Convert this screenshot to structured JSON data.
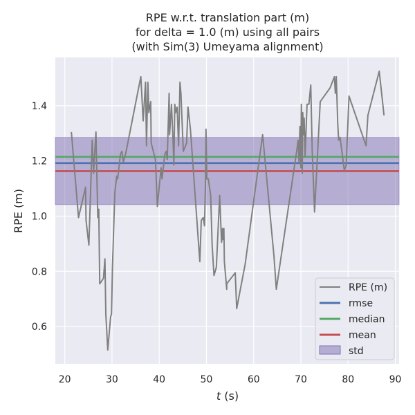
{
  "chart_data": {
    "type": "line",
    "title_lines": [
      "RPE w.r.t. translation part (m)",
      "for delta = 1.0 (m) using all pairs",
      "(with Sim(3) Umeyama alignment)"
    ],
    "xlabel_var": "t",
    "xlabel_unit": "(s)",
    "ylabel": "RPE (m)",
    "xlim": [
      18.0,
      90.8
    ],
    "ylim": [
      0.465,
      1.575
    ],
    "x_ticks": [
      20,
      30,
      40,
      50,
      60,
      70,
      80,
      90
    ],
    "y_ticks": [
      0.6,
      0.8,
      1.0,
      1.2,
      1.4
    ],
    "y_tick_labels": [
      "0.6",
      "0.8",
      "1.0",
      "1.2",
      "1.4"
    ],
    "grid": true,
    "legend_position": "lower-right",
    "colors": {
      "background": "#eaeaf2",
      "grid": "#ffffff",
      "rpe": "#808080",
      "rmse": "#4c72b0",
      "median": "#55a868",
      "mean": "#c44e52",
      "std": "#8172b2"
    },
    "series": [
      {
        "name": "RPE (m)",
        "points": [
          [
            21.4,
            1.305
          ],
          [
            22.9,
            0.995
          ],
          [
            24.4,
            1.105
          ],
          [
            24.5,
            0.985
          ],
          [
            25.1,
            0.895
          ],
          [
            25.8,
            1.275
          ],
          [
            26.1,
            1.155
          ],
          [
            26.6,
            1.305
          ],
          [
            27.0,
            0.995
          ],
          [
            27.2,
            1.025
          ],
          [
            27.4,
            0.755
          ],
          [
            28.2,
            0.775
          ],
          [
            28.5,
            0.845
          ],
          [
            28.7,
            0.645
          ],
          [
            29.1,
            0.515
          ],
          [
            29.7,
            0.635
          ],
          [
            29.9,
            0.645
          ],
          [
            30.1,
            0.815
          ],
          [
            30.6,
            1.085
          ],
          [
            31.0,
            1.145
          ],
          [
            31.2,
            1.135
          ],
          [
            31.8,
            1.225
          ],
          [
            32.1,
            1.235
          ],
          [
            32.4,
            1.195
          ],
          [
            33.0,
            1.235
          ],
          [
            36.1,
            1.505
          ],
          [
            36.6,
            1.345
          ],
          [
            37.1,
            1.485
          ],
          [
            37.3,
            1.255
          ],
          [
            37.6,
            1.485
          ],
          [
            37.8,
            1.375
          ],
          [
            38.2,
            1.415
          ],
          [
            38.3,
            1.265
          ],
          [
            39.2,
            1.205
          ],
          [
            39.6,
            1.035
          ],
          [
            40.4,
            1.175
          ],
          [
            40.6,
            1.135
          ],
          [
            41.2,
            1.225
          ],
          [
            41.5,
            1.235
          ],
          [
            41.7,
            1.205
          ],
          [
            42.1,
            1.445
          ],
          [
            42.2,
            1.295
          ],
          [
            42.6,
            1.405
          ],
          [
            42.9,
            1.285
          ],
          [
            43.1,
            1.185
          ],
          [
            43.3,
            1.405
          ],
          [
            43.5,
            1.375
          ],
          [
            43.8,
            1.395
          ],
          [
            44.1,
            1.255
          ],
          [
            44.4,
            1.485
          ],
          [
            44.6,
            1.445
          ],
          [
            45.1,
            1.235
          ],
          [
            45.8,
            1.265
          ],
          [
            46.1,
            1.395
          ],
          [
            46.6,
            1.315
          ],
          [
            46.9,
            1.245
          ],
          [
            48.6,
            0.835
          ],
          [
            48.9,
            0.985
          ],
          [
            49.3,
            0.995
          ],
          [
            49.6,
            0.965
          ],
          [
            49.8,
            1.125
          ],
          [
            49.9,
            1.315
          ],
          [
            50.1,
            1.135
          ],
          [
            50.4,
            1.135
          ],
          [
            50.9,
            1.075
          ],
          [
            51.2,
            0.895
          ],
          [
            51.6,
            0.785
          ],
          [
            52.1,
            0.815
          ],
          [
            52.8,
            1.075
          ],
          [
            53.2,
            0.905
          ],
          [
            53.4,
            0.955
          ],
          [
            53.5,
            0.915
          ],
          [
            53.7,
            0.955
          ],
          [
            53.8,
            0.835
          ],
          [
            54.3,
            0.735
          ],
          [
            54.3,
            0.755
          ],
          [
            56.1,
            0.795
          ],
          [
            56.4,
            0.665
          ],
          [
            58.2,
            0.825
          ],
          [
            61.9,
            1.295
          ],
          [
            64.3,
            0.855
          ],
          [
            64.8,
            0.735
          ],
          [
            69.2,
            1.245
          ],
          [
            69.4,
            1.275
          ],
          [
            69.6,
            1.195
          ],
          [
            69.8,
            1.325
          ],
          [
            70.0,
            1.175
          ],
          [
            70.1,
            1.405
          ],
          [
            70.3,
            1.155
          ],
          [
            70.4,
            1.375
          ],
          [
            70.6,
            1.295
          ],
          [
            70.7,
            1.355
          ],
          [
            70.9,
            1.215
          ],
          [
            71.3,
            1.405
          ],
          [
            71.7,
            1.405
          ],
          [
            72.1,
            1.475
          ],
          [
            72.4,
            1.235
          ],
          [
            72.9,
            1.015
          ],
          [
            74.1,
            1.415
          ],
          [
            76.2,
            1.465
          ],
          [
            77.1,
            1.505
          ],
          [
            77.3,
            1.445
          ],
          [
            77.5,
            1.505
          ],
          [
            77.8,
            1.335
          ],
          [
            78.0,
            1.275
          ],
          [
            78.3,
            1.285
          ],
          [
            79.2,
            1.165
          ],
          [
            79.6,
            1.185
          ],
          [
            80.2,
            1.435
          ],
          [
            83.8,
            1.255
          ],
          [
            84.2,
            1.365
          ],
          [
            86.6,
            1.525
          ],
          [
            87.6,
            1.365
          ]
        ]
      },
      {
        "name": "rmse",
        "value": 1.192
      },
      {
        "name": "median",
        "value": 1.215
      },
      {
        "name": "mean",
        "value": 1.163
      },
      {
        "name": "std",
        "range": [
          1.042,
          1.285
        ]
      }
    ],
    "legend": [
      "RPE (m)",
      "rmse",
      "median",
      "mean",
      "std"
    ]
  }
}
